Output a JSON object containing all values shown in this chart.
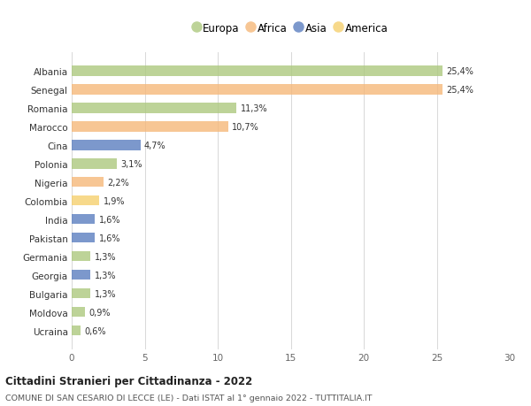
{
  "countries": [
    "Albania",
    "Senegal",
    "Romania",
    "Marocco",
    "Cina",
    "Polonia",
    "Nigeria",
    "Colombia",
    "India",
    "Pakistan",
    "Germania",
    "Georgia",
    "Bulgaria",
    "Moldova",
    "Ucraina"
  ],
  "values": [
    25.4,
    25.4,
    11.3,
    10.7,
    4.7,
    3.1,
    2.2,
    1.9,
    1.6,
    1.6,
    1.3,
    1.3,
    1.3,
    0.9,
    0.6
  ],
  "labels": [
    "25,4%",
    "25,4%",
    "11,3%",
    "10,7%",
    "4,7%",
    "3,1%",
    "2,2%",
    "1,9%",
    "1,6%",
    "1,6%",
    "1,3%",
    "1,3%",
    "1,3%",
    "0,9%",
    "0,6%"
  ],
  "continents": [
    "Europa",
    "Africa",
    "Europa",
    "Africa",
    "Asia",
    "Europa",
    "Africa",
    "America",
    "Asia",
    "Asia",
    "Europa",
    "Asia",
    "Europa",
    "Europa",
    "Europa"
  ],
  "colors": {
    "Europa": "#adc97e",
    "Africa": "#f5b87a",
    "Asia": "#5b7fc0",
    "America": "#f5d06e"
  },
  "xlim": [
    0,
    30
  ],
  "xticks": [
    0,
    5,
    10,
    15,
    20,
    25,
    30
  ],
  "title": "Cittadini Stranieri per Cittadinanza - 2022",
  "subtitle": "COMUNE DI SAN CESARIO DI LECCE (LE) - Dati ISTAT al 1° gennaio 2022 - TUTTITALIA.IT",
  "background_color": "#ffffff",
  "bar_alpha": 0.8,
  "legend_order": [
    "Europa",
    "Africa",
    "Asia",
    "America"
  ]
}
